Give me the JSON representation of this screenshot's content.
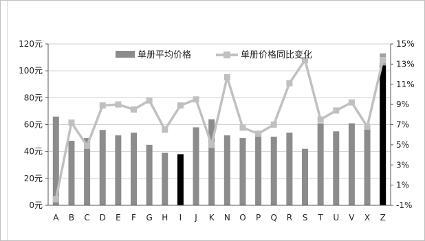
{
  "chart_data": {
    "type": "bar+line",
    "categories": [
      "A",
      "B",
      "C",
      "D",
      "E",
      "F",
      "G",
      "H",
      "I",
      "J",
      "K",
      "N",
      "O",
      "P",
      "Q",
      "R",
      "S",
      "T",
      "U",
      "V",
      "X",
      "Z"
    ],
    "series": [
      {
        "name": "单册平均价格",
        "type": "bar",
        "axis": "left",
        "values": [
          66,
          48,
          50,
          56,
          52,
          54,
          45,
          39,
          38,
          58,
          64,
          52,
          50,
          53,
          51,
          54,
          42,
          61,
          55,
          61,
          59,
          113
        ],
        "colors": {
          "default": "#8c8c8c",
          "highlight_black": "#000000",
          "highlight_black_index": [
            8
          ],
          "split_index": 21,
          "split_top_color": "#a0a0a0",
          "split_bottom_color": "#000000",
          "split_value": 104
        }
      },
      {
        "name": "单册价格同比变化",
        "type": "line",
        "axis": "right",
        "values": [
          -0.4,
          7.2,
          4.9,
          8.9,
          9.0,
          8.5,
          9.4,
          6.5,
          8.9,
          9.5,
          5.0,
          11.7,
          6.7,
          6.1,
          7.0,
          11.1,
          13.4,
          7.5,
          8.4,
          9.2,
          6.8,
          13.4
        ],
        "color": "#c0c0c0"
      }
    ],
    "y_left": {
      "ticks": [
        "0元",
        "20元",
        "40元",
        "60元",
        "80元",
        "100元",
        "120元"
      ],
      "ylim": [
        0,
        120
      ]
    },
    "y_right": {
      "ticks": [
        "-1%",
        "1%",
        "3%",
        "5%",
        "7%",
        "9%",
        "11%",
        "13%",
        "15%"
      ],
      "ylim": [
        -1,
        15
      ]
    },
    "legend": {
      "position": "top-center",
      "items": [
        {
          "label": "单册平均价格",
          "kind": "bar"
        },
        {
          "label": "单册价格同比变化",
          "kind": "line"
        }
      ]
    },
    "grid": true
  }
}
